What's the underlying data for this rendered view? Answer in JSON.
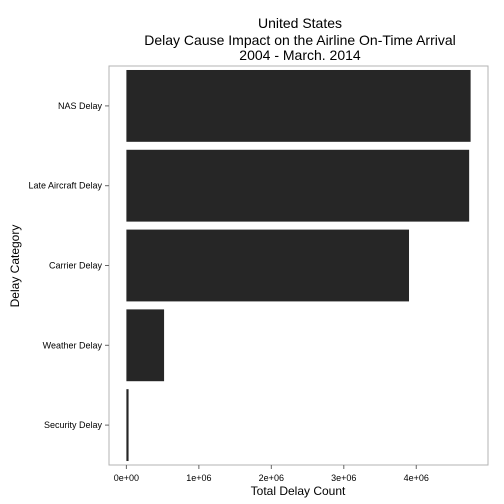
{
  "chart_data": {
    "type": "bar",
    "orientation": "horizontal",
    "title_lines": [
      "United States",
      "Delay Cause  Impact on the Airline On-Time Arrival",
      "2004 - March. 2014"
    ],
    "xlabel": "Total Delay Count",
    "ylabel": "Delay Category",
    "categories": [
      "NAS Delay",
      "Late Aircraft Delay",
      "Carrier Delay",
      "Weather Delay",
      "Security Delay"
    ],
    "values": [
      4750000,
      4730000,
      3900000,
      520000,
      30000
    ],
    "xticks": [
      0,
      1000000,
      2000000,
      3000000,
      4000000
    ],
    "xtick_labels": [
      "0e+00",
      "1e+06",
      "2e+06",
      "3e+06",
      "4e+06"
    ],
    "xlim": [
      -240000,
      4990000
    ],
    "grid": false,
    "bar_color": "#262626",
    "panel_border_color": "#b3b3b3"
  }
}
